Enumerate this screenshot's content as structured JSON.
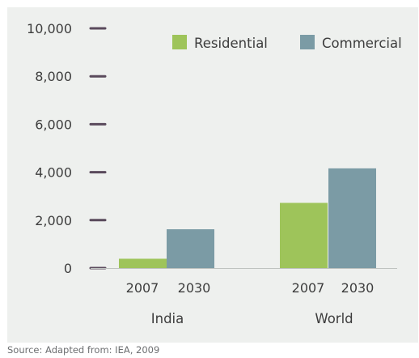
{
  "chart_data": {
    "type": "bar",
    "groups": [
      {
        "name": "India",
        "categories": [
          "2007",
          "2030"
        ]
      },
      {
        "name": "World",
        "categories": [
          "2007",
          "2030"
        ]
      }
    ],
    "series": [
      {
        "name": "Residential",
        "color": "#9ec45a",
        "values": [
          390,
          2720
        ]
      },
      {
        "name": "Commercial",
        "color": "#7b9ba5",
        "values": [
          1620,
          4160
        ]
      }
    ],
    "bars": [
      {
        "group": "India",
        "category": "2007",
        "series": "Residential",
        "value": 390
      },
      {
        "group": "India",
        "category": "2030",
        "series": "Commercial",
        "value": 1620
      },
      {
        "group": "World",
        "category": "2007",
        "series": "Residential",
        "value": 2720
      },
      {
        "group": "World",
        "category": "2030",
        "series": "Commercial",
        "value": 4160
      }
    ],
    "ylim": [
      0,
      10000
    ],
    "yticks": [
      "0",
      "2,000",
      "4,000",
      "6,000",
      "8,000",
      "10,000"
    ],
    "grid": false,
    "legend": "top-right",
    "source": "Source: Adapted from: IEA, 2009"
  }
}
